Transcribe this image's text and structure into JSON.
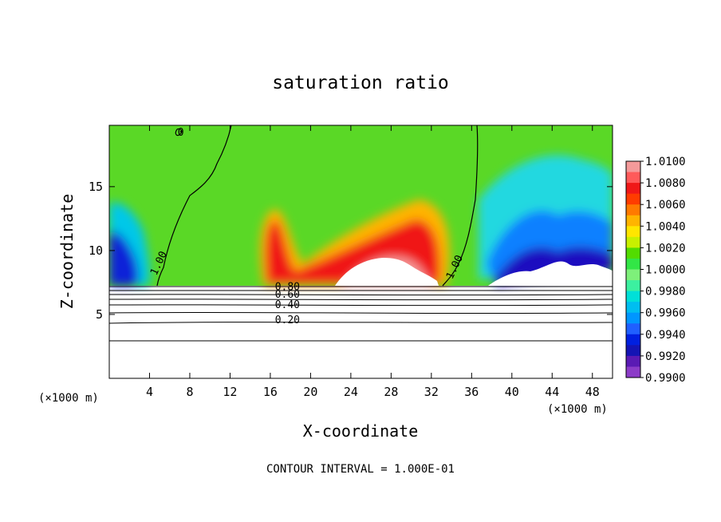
{
  "chart_data": {
    "type": "heatmap",
    "title": "saturation ratio",
    "xlabel": "X-coordinate",
    "ylabel": "Z-coordinate",
    "x_unit": "(×1000 m)",
    "x_unit_right": "(×1000 m)",
    "xlim": [
      0,
      50
    ],
    "ylim": [
      0,
      19.8
    ],
    "xticks": [
      4,
      8,
      12,
      16,
      20,
      24,
      28,
      32,
      36,
      40,
      44,
      48
    ],
    "yticks": [
      5,
      10,
      15
    ],
    "footer": "CONTOUR INTERVAL = 1.000E-01",
    "colorbar": {
      "ticks": [
        "1.0100",
        "1.0080",
        "1.0060",
        "1.0040",
        "1.0020",
        "1.0000",
        "0.9980",
        "0.9960",
        "0.9940",
        "0.9920",
        "0.9900"
      ],
      "colors": [
        "#f49a9a",
        "#ff5a5a",
        "#f01818",
        "#ff3c00",
        "#ff7a00",
        "#ffb400",
        "#ffe600",
        "#c8f000",
        "#52dc00",
        "#32e646",
        "#7ef07a",
        "#3cf0a0",
        "#00e0d8",
        "#00bef0",
        "#0096ff",
        "#2060ff",
        "#0020e0",
        "#1414b4",
        "#5a1ab4",
        "#8c3cc8"
      ]
    },
    "contour_labels": [
      {
        "text": "1.00",
        "x": 5.2,
        "y": 8.9
      },
      {
        "text": "1.00",
        "x": 34.6,
        "y": 8.6
      },
      {
        "text": "0.80",
        "x": 17.7,
        "y": 6.9
      },
      {
        "text": "0.60",
        "x": 17.7,
        "y": 6.3
      },
      {
        "text": "0.40",
        "x": 17.7,
        "y": 5.5
      },
      {
        "text": "0.20",
        "x": 17.7,
        "y": 4.3
      },
      {
        "text": "0",
        "x": 7.1,
        "y": 19.0
      }
    ]
  }
}
